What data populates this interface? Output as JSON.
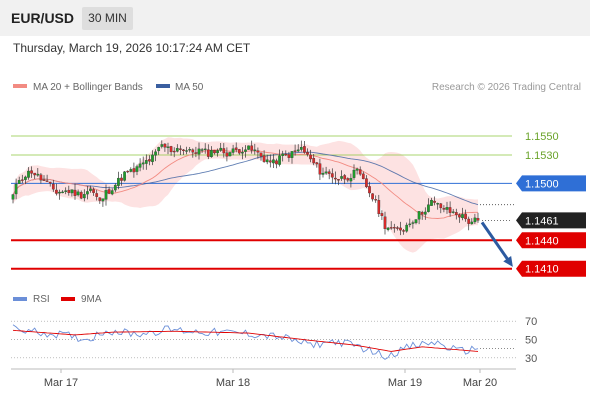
{
  "header": {
    "symbol": "EUR/USD",
    "timeframe": "30 MIN",
    "datetime": "Thursday, March 19, 2026 10:17:24 AM CET"
  },
  "colors": {
    "ma20": "#f28b82",
    "ma50": "#3a5fa0",
    "bollinger_fill": "#fde2e2",
    "resistance": "#8cc63f",
    "pivot": "#2f6fd6",
    "support": "#e00000",
    "candle_up": "#1f9b2b",
    "candle_down": "#d62b2b",
    "rsi": "#6b8fd8",
    "rsi_ma": "#e00000",
    "arrow": "#2c5aa0"
  },
  "chart_data": {
    "type": "candlestick",
    "instrument": "EUR/USD",
    "timeframe": "30 MIN",
    "legend": [
      "MA 20 + Bollinger Bands",
      "MA 50"
    ],
    "source": "Research © 2026 Trading Central",
    "x_tick_labels": [
      "Mar 17",
      "Mar 18",
      "Mar 19",
      "Mar 20"
    ],
    "ylim": [
      1.1396,
      1.1588
    ],
    "price_levels": [
      {
        "label": "1.1550",
        "value": 1.155,
        "kind": "resistance"
      },
      {
        "label": "1.1530",
        "value": 1.153,
        "kind": "resistance"
      },
      {
        "label": "1.1500",
        "value": 1.15,
        "kind": "pivot"
      },
      {
        "label": "1.1461",
        "value": 1.1461,
        "kind": "last"
      },
      {
        "label": "1.1440",
        "value": 1.144,
        "kind": "support"
      },
      {
        "label": "1.1410",
        "value": 1.141,
        "kind": "support"
      }
    ],
    "forecast": {
      "from": 1.1461,
      "to": 1.141
    },
    "close_anchors": [
      [
        0,
        1.1487
      ],
      [
        2,
        1.1505
      ],
      [
        6,
        1.1513
      ],
      [
        10,
        1.1502
      ],
      [
        14,
        1.1491
      ],
      [
        18,
        1.1492
      ],
      [
        22,
        1.1488
      ],
      [
        25,
        1.1494
      ],
      [
        28,
        1.148
      ],
      [
        30,
        1.149
      ],
      [
        33,
        1.1499
      ],
      [
        36,
        1.151
      ],
      [
        39,
        1.1513
      ],
      [
        42,
        1.1521
      ],
      [
        45,
        1.1527
      ],
      [
        48,
        1.154
      ],
      [
        51,
        1.1535
      ],
      [
        54,
        1.1538
      ],
      [
        57,
        1.1533
      ],
      [
        60,
        1.1535
      ],
      [
        63,
        1.1532
      ],
      [
        66,
        1.1536
      ],
      [
        69,
        1.1532
      ],
      [
        72,
        1.1535
      ],
      [
        75,
        1.1537
      ],
      [
        78,
        1.1534
      ],
      [
        81,
        1.1526
      ],
      [
        84,
        1.1521
      ],
      [
        87,
        1.1529
      ],
      [
        90,
        1.1531
      ],
      [
        93,
        1.1537
      ],
      [
        96,
        1.1525
      ],
      [
        99,
        1.1513
      ],
      [
        102,
        1.151
      ],
      [
        105,
        1.1505
      ],
      [
        108,
        1.1507
      ],
      [
        111,
        1.1512
      ],
      [
        114,
        1.1497
      ],
      [
        117,
        1.1479
      ],
      [
        120,
        1.1456
      ],
      [
        123,
        1.145
      ],
      [
        126,
        1.1453
      ],
      [
        129,
        1.1462
      ],
      [
        132,
        1.147
      ],
      [
        135,
        1.148
      ],
      [
        138,
        1.1475
      ],
      [
        141,
        1.147
      ],
      [
        144,
        1.1467
      ],
      [
        147,
        1.146
      ],
      [
        150,
        1.1461
      ]
    ],
    "rsi": {
      "legend": [
        "RSI",
        "9MA"
      ],
      "ylim": [
        20,
        80
      ],
      "ticks": [
        70,
        50,
        30
      ],
      "anchors": [
        [
          0,
          62
        ],
        [
          8,
          58
        ],
        [
          16,
          55
        ],
        [
          24,
          50
        ],
        [
          30,
          60
        ],
        [
          40,
          56
        ],
        [
          50,
          61
        ],
        [
          62,
          58
        ],
        [
          74,
          57
        ],
        [
          86,
          53
        ],
        [
          96,
          44
        ],
        [
          104,
          48
        ],
        [
          112,
          42
        ],
        [
          120,
          32
        ],
        [
          128,
          42
        ],
        [
          136,
          47
        ],
        [
          144,
          37
        ],
        [
          150,
          40
        ]
      ],
      "ma_anchors": [
        [
          0,
          60
        ],
        [
          20,
          55
        ],
        [
          32,
          58
        ],
        [
          52,
          59
        ],
        [
          76,
          57
        ],
        [
          96,
          49
        ],
        [
          110,
          44
        ],
        [
          122,
          37
        ],
        [
          132,
          42
        ],
        [
          150,
          37
        ]
      ]
    }
  }
}
